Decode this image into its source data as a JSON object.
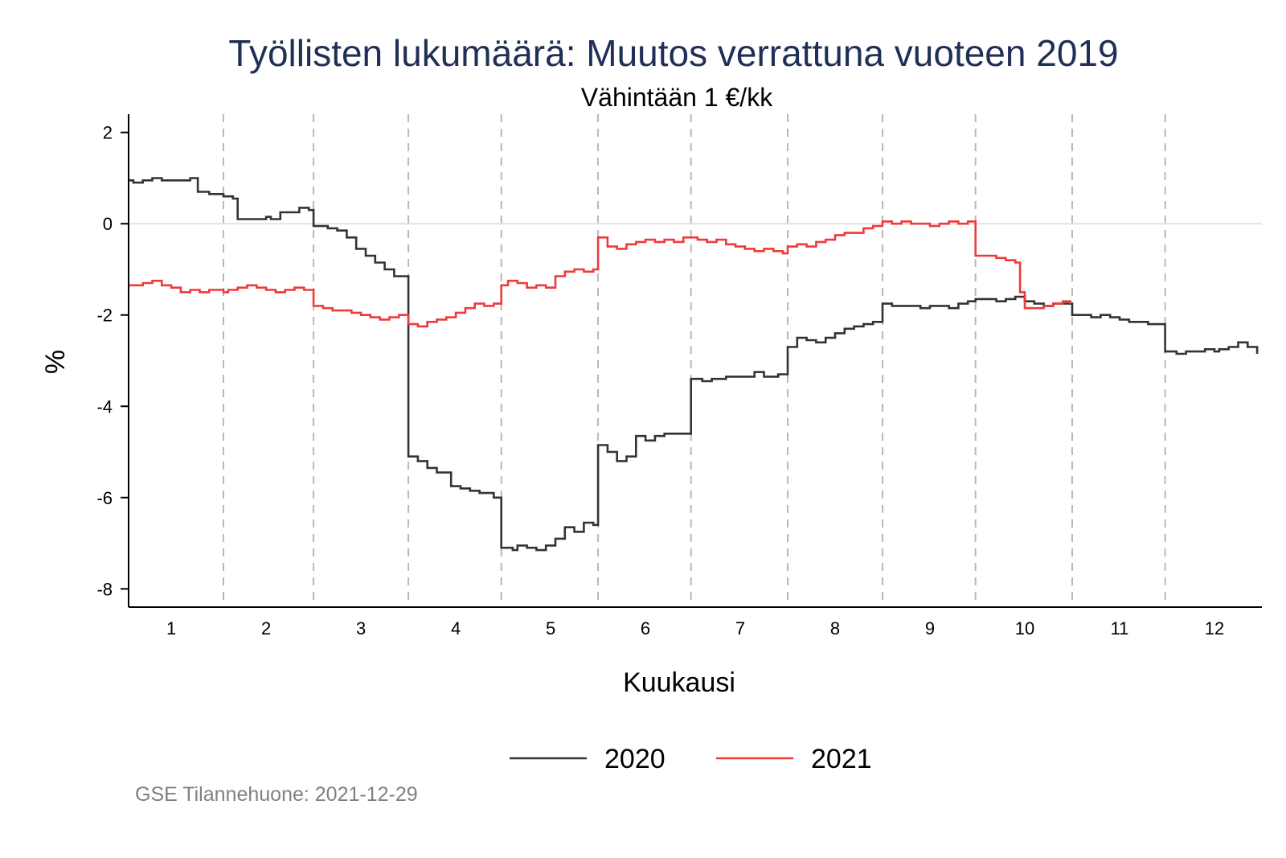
{
  "chart_data": {
    "type": "line",
    "title": "Työllisten lukumäärä: Muutos verrattuna vuoteen 2019",
    "subtitle": "Vähintään 1 €/kk",
    "xlabel": "Kuukausi",
    "ylabel": "%",
    "xlim": [
      0.55,
      12.5
    ],
    "ylim": [
      -8.4,
      2.4
    ],
    "x_ticks": [
      1,
      2,
      3,
      4,
      5,
      6,
      7,
      8,
      9,
      10,
      11,
      12
    ],
    "y_ticks": [
      2,
      0,
      -2,
      -4,
      -6,
      -8
    ],
    "month_boundaries": [
      1.55,
      2.5,
      3.5,
      4.48,
      5.5,
      6.48,
      7.5,
      8.5,
      9.48,
      10.5,
      11.48
    ],
    "reference_line_y": 0,
    "grid": false,
    "legend_position": "bottom",
    "note": "GSE Tilannehuone: 2021-12-29",
    "series": [
      {
        "name": "2020",
        "color": "#333333",
        "points": [
          [
            0.55,
            0.95
          ],
          [
            0.6,
            0.9
          ],
          [
            0.7,
            0.95
          ],
          [
            0.8,
            1.0
          ],
          [
            0.9,
            0.95
          ],
          [
            1.0,
            0.95
          ],
          [
            1.1,
            0.95
          ],
          [
            1.2,
            1.0
          ],
          [
            1.28,
            0.7
          ],
          [
            1.4,
            0.65
          ],
          [
            1.55,
            0.6
          ],
          [
            1.65,
            0.55
          ],
          [
            1.7,
            0.1
          ],
          [
            1.85,
            0.1
          ],
          [
            1.95,
            0.1
          ],
          [
            2.0,
            0.15
          ],
          [
            2.05,
            0.1
          ],
          [
            2.15,
            0.25
          ],
          [
            2.25,
            0.25
          ],
          [
            2.35,
            0.35
          ],
          [
            2.45,
            0.3
          ],
          [
            2.5,
            -0.05
          ],
          [
            2.65,
            -0.1
          ],
          [
            2.75,
            -0.15
          ],
          [
            2.85,
            -0.3
          ],
          [
            2.95,
            -0.55
          ],
          [
            3.05,
            -0.7
          ],
          [
            3.15,
            -0.85
          ],
          [
            3.25,
            -1.0
          ],
          [
            3.35,
            -1.15
          ],
          [
            3.45,
            -1.15
          ],
          [
            3.5,
            -5.1
          ],
          [
            3.6,
            -5.2
          ],
          [
            3.7,
            -5.35
          ],
          [
            3.8,
            -5.45
          ],
          [
            3.9,
            -5.45
          ],
          [
            3.95,
            -5.75
          ],
          [
            4.05,
            -5.8
          ],
          [
            4.15,
            -5.85
          ],
          [
            4.25,
            -5.9
          ],
          [
            4.35,
            -5.9
          ],
          [
            4.4,
            -6.0
          ],
          [
            4.48,
            -7.1
          ],
          [
            4.6,
            -7.15
          ],
          [
            4.65,
            -7.05
          ],
          [
            4.75,
            -7.1
          ],
          [
            4.85,
            -7.15
          ],
          [
            4.95,
            -7.05
          ],
          [
            5.05,
            -6.9
          ],
          [
            5.15,
            -6.65
          ],
          [
            5.25,
            -6.75
          ],
          [
            5.35,
            -6.55
          ],
          [
            5.45,
            -6.6
          ],
          [
            5.5,
            -4.85
          ],
          [
            5.6,
            -5.0
          ],
          [
            5.7,
            -5.2
          ],
          [
            5.8,
            -5.1
          ],
          [
            5.9,
            -4.65
          ],
          [
            6.0,
            -4.75
          ],
          [
            6.1,
            -4.65
          ],
          [
            6.2,
            -4.6
          ],
          [
            6.3,
            -4.6
          ],
          [
            6.48,
            -3.4
          ],
          [
            6.6,
            -3.45
          ],
          [
            6.7,
            -3.4
          ],
          [
            6.85,
            -3.35
          ],
          [
            7.0,
            -3.35
          ],
          [
            7.15,
            -3.25
          ],
          [
            7.25,
            -3.35
          ],
          [
            7.4,
            -3.3
          ],
          [
            7.5,
            -2.7
          ],
          [
            7.6,
            -2.5
          ],
          [
            7.7,
            -2.55
          ],
          [
            7.8,
            -2.6
          ],
          [
            7.9,
            -2.5
          ],
          [
            8.0,
            -2.4
          ],
          [
            8.1,
            -2.3
          ],
          [
            8.2,
            -2.25
          ],
          [
            8.3,
            -2.2
          ],
          [
            8.4,
            -2.15
          ],
          [
            8.5,
            -1.75
          ],
          [
            8.6,
            -1.8
          ],
          [
            8.7,
            -1.8
          ],
          [
            8.8,
            -1.8
          ],
          [
            8.9,
            -1.85
          ],
          [
            9.0,
            -1.8
          ],
          [
            9.1,
            -1.8
          ],
          [
            9.2,
            -1.85
          ],
          [
            9.3,
            -1.75
          ],
          [
            9.4,
            -1.7
          ],
          [
            9.48,
            -1.65
          ],
          [
            9.6,
            -1.65
          ],
          [
            9.7,
            -1.7
          ],
          [
            9.8,
            -1.65
          ],
          [
            9.9,
            -1.6
          ],
          [
            10.0,
            -1.7
          ],
          [
            10.1,
            -1.75
          ],
          [
            10.2,
            -1.8
          ],
          [
            10.3,
            -1.75
          ],
          [
            10.4,
            -1.75
          ],
          [
            10.5,
            -2.0
          ],
          [
            10.6,
            -2.0
          ],
          [
            10.7,
            -2.05
          ],
          [
            10.8,
            -2.0
          ],
          [
            10.9,
            -2.05
          ],
          [
            11.0,
            -2.1
          ],
          [
            11.1,
            -2.15
          ],
          [
            11.2,
            -2.15
          ],
          [
            11.3,
            -2.2
          ],
          [
            11.48,
            -2.8
          ],
          [
            11.6,
            -2.85
          ],
          [
            11.7,
            -2.8
          ],
          [
            11.8,
            -2.8
          ],
          [
            11.9,
            -2.75
          ],
          [
            12.0,
            -2.8
          ],
          [
            12.05,
            -2.75
          ],
          [
            12.15,
            -2.7
          ],
          [
            12.25,
            -2.6
          ],
          [
            12.35,
            -2.7
          ],
          [
            12.45,
            -2.85
          ]
        ]
      },
      {
        "name": "2021",
        "color": "#f03a3a",
        "points": [
          [
            0.55,
            -1.35
          ],
          [
            0.6,
            -1.35
          ],
          [
            0.7,
            -1.3
          ],
          [
            0.8,
            -1.25
          ],
          [
            0.9,
            -1.35
          ],
          [
            1.0,
            -1.4
          ],
          [
            1.1,
            -1.5
          ],
          [
            1.2,
            -1.45
          ],
          [
            1.3,
            -1.5
          ],
          [
            1.4,
            -1.45
          ],
          [
            1.55,
            -1.5
          ],
          [
            1.6,
            -1.45
          ],
          [
            1.7,
            -1.4
          ],
          [
            1.8,
            -1.35
          ],
          [
            1.9,
            -1.4
          ],
          [
            2.0,
            -1.45
          ],
          [
            2.1,
            -1.5
          ],
          [
            2.2,
            -1.45
          ],
          [
            2.3,
            -1.4
          ],
          [
            2.4,
            -1.45
          ],
          [
            2.5,
            -1.8
          ],
          [
            2.6,
            -1.85
          ],
          [
            2.7,
            -1.9
          ],
          [
            2.8,
            -1.9
          ],
          [
            2.9,
            -1.95
          ],
          [
            3.0,
            -2.0
          ],
          [
            3.1,
            -2.05
          ],
          [
            3.2,
            -2.1
          ],
          [
            3.3,
            -2.05
          ],
          [
            3.4,
            -2.0
          ],
          [
            3.5,
            -2.2
          ],
          [
            3.6,
            -2.25
          ],
          [
            3.7,
            -2.15
          ],
          [
            3.8,
            -2.1
          ],
          [
            3.9,
            -2.05
          ],
          [
            4.0,
            -1.95
          ],
          [
            4.1,
            -1.85
          ],
          [
            4.2,
            -1.75
          ],
          [
            4.3,
            -1.8
          ],
          [
            4.4,
            -1.75
          ],
          [
            4.48,
            -1.35
          ],
          [
            4.55,
            -1.25
          ],
          [
            4.65,
            -1.3
          ],
          [
            4.75,
            -1.4
          ],
          [
            4.85,
            -1.35
          ],
          [
            4.95,
            -1.4
          ],
          [
            5.05,
            -1.15
          ],
          [
            5.15,
            -1.05
          ],
          [
            5.25,
            -1.0
          ],
          [
            5.35,
            -1.05
          ],
          [
            5.45,
            -1.0
          ],
          [
            5.5,
            -0.3
          ],
          [
            5.6,
            -0.5
          ],
          [
            5.7,
            -0.55
          ],
          [
            5.8,
            -0.45
          ],
          [
            5.9,
            -0.4
          ],
          [
            6.0,
            -0.35
          ],
          [
            6.1,
            -0.4
          ],
          [
            6.2,
            -0.35
          ],
          [
            6.3,
            -0.4
          ],
          [
            6.4,
            -0.3
          ],
          [
            6.48,
            -0.3
          ],
          [
            6.55,
            -0.35
          ],
          [
            6.65,
            -0.4
          ],
          [
            6.75,
            -0.35
          ],
          [
            6.85,
            -0.45
          ],
          [
            6.95,
            -0.5
          ],
          [
            7.05,
            -0.55
          ],
          [
            7.15,
            -0.6
          ],
          [
            7.25,
            -0.55
          ],
          [
            7.35,
            -0.6
          ],
          [
            7.45,
            -0.65
          ],
          [
            7.5,
            -0.5
          ],
          [
            7.6,
            -0.45
          ],
          [
            7.7,
            -0.5
          ],
          [
            7.8,
            -0.4
          ],
          [
            7.9,
            -0.35
          ],
          [
            8.0,
            -0.25
          ],
          [
            8.1,
            -0.2
          ],
          [
            8.2,
            -0.2
          ],
          [
            8.3,
            -0.1
          ],
          [
            8.4,
            -0.05
          ],
          [
            8.5,
            0.05
          ],
          [
            8.6,
            0.0
          ],
          [
            8.7,
            0.05
          ],
          [
            8.8,
            0.0
          ],
          [
            8.9,
            0.0
          ],
          [
            9.0,
            -0.05
          ],
          [
            9.1,
            0.0
          ],
          [
            9.2,
            0.05
          ],
          [
            9.3,
            0.0
          ],
          [
            9.4,
            0.05
          ],
          [
            9.48,
            -0.7
          ],
          [
            9.6,
            -0.7
          ],
          [
            9.7,
            -0.75
          ],
          [
            9.8,
            -0.8
          ],
          [
            9.9,
            -0.85
          ],
          [
            9.95,
            -1.5
          ],
          [
            10.0,
            -1.85
          ],
          [
            10.1,
            -1.85
          ],
          [
            10.2,
            -1.8
          ],
          [
            10.3,
            -1.75
          ],
          [
            10.4,
            -1.7
          ],
          [
            10.48,
            -1.75
          ]
        ]
      }
    ]
  }
}
